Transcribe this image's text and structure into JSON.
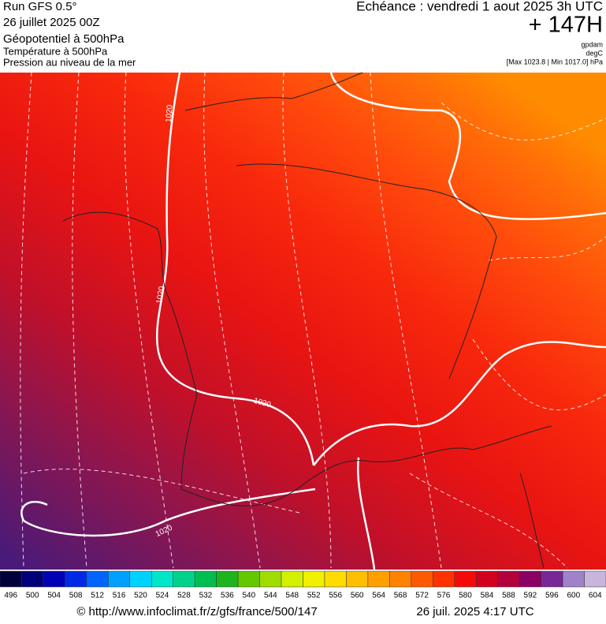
{
  "header": {
    "run": "Run GFS 0.5°",
    "date": "26 juillet 2025 00Z",
    "field": "Géopotentiel à 500hPa",
    "temp": "Température à 500hPa",
    "pressure": "Pression au niveau de la mer",
    "echeance": "Echéance : vendredi 1 aout 2025 3h UTC",
    "lead": "+ 147H",
    "unit1": "gpdam",
    "unit2": "degC",
    "range": "[Max 1023.8 | Min 1017.0] hPa"
  },
  "map": {
    "isobar_labels": [
      "1020",
      "1020",
      "1020",
      "1020"
    ]
  },
  "scale": {
    "labels": [
      496,
      500,
      504,
      508,
      512,
      516,
      520,
      524,
      528,
      532,
      536,
      540,
      544,
      548,
      552,
      556,
      560,
      564,
      568,
      572,
      576,
      580,
      584,
      588,
      592,
      596,
      600,
      604
    ],
    "colors": [
      "#00003c",
      "#000078",
      "#0000b4",
      "#0028e6",
      "#0064ff",
      "#00a0ff",
      "#00d2ff",
      "#00e6c8",
      "#00d28c",
      "#00be50",
      "#1eb41e",
      "#64c800",
      "#a0dc00",
      "#d2f000",
      "#f0f000",
      "#ffdc00",
      "#ffbe00",
      "#ffa000",
      "#ff8200",
      "#ff5a00",
      "#ff3200",
      "#f50a0a",
      "#d2001e",
      "#b4003c",
      "#8c0064",
      "#782896",
      "#a082c8",
      "#c8b4dc"
    ]
  },
  "footer": {
    "url": "© http://www.infoclimat.fr/z/gfs/france/500/147",
    "timestamp": "26 juil. 2025  4:17 UTC"
  }
}
